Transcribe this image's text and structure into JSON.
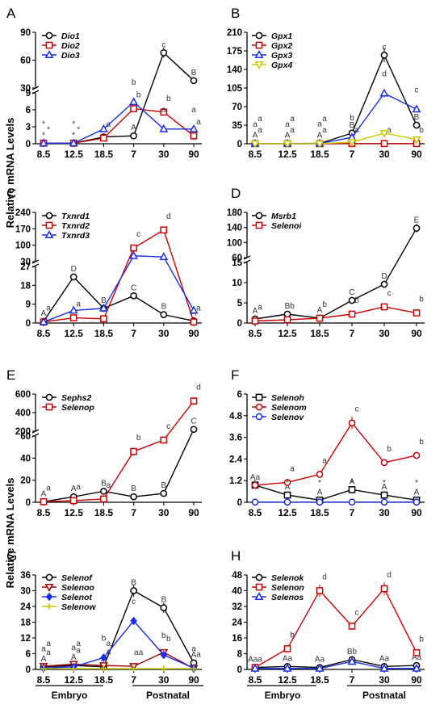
{
  "y_axis_label": "Relative mRNA Levels",
  "x_ticks": [
    "8.5",
    "12.5",
    "18.5",
    "7",
    "30",
    "90"
  ],
  "groups": {
    "embryo": "Embryo",
    "postnatal": "Postnatal"
  },
  "colors": {
    "black": "#000000",
    "red": "#cc0000",
    "blue": "#1a2ee6",
    "yellow": "#c8c800",
    "darkred": "#a00000"
  },
  "chart_data": [
    {
      "panel": "A",
      "type": "line",
      "x": [
        "8.5",
        "12.5",
        "18.5",
        "7",
        "30",
        "90"
      ],
      "broken_axis": true,
      "y_ticks_lower": [
        0,
        3,
        6,
        9
      ],
      "y_ticks_upper": [
        30,
        60,
        90
      ],
      "series": [
        {
          "name": "Dio1",
          "color": "black",
          "marker": "circle",
          "values": [
            0.1,
            0.1,
            1.2,
            1.4,
            68,
            38
          ],
          "labels": [
            "*",
            "*",
            "a",
            "A",
            "c",
            "B"
          ]
        },
        {
          "name": "Dio2",
          "color": "red",
          "marker": "square",
          "values": [
            0.1,
            0.1,
            1.0,
            6.2,
            5.6,
            1.4
          ],
          "labels": [
            "*",
            "*",
            "a",
            "b",
            "b",
            "a"
          ]
        },
        {
          "name": "Dio3",
          "color": "blue",
          "marker": "triangle",
          "values": [
            0.1,
            0.1,
            2.6,
            7.4,
            2.6,
            2.6
          ],
          "labels": [
            "*",
            "*",
            "",
            "b",
            "a",
            "a"
          ]
        }
      ]
    },
    {
      "panel": "B",
      "type": "line",
      "x": [
        "8.5",
        "12.5",
        "18.5",
        "7",
        "30",
        "90"
      ],
      "y_ticks": [
        0,
        35,
        70,
        105,
        140,
        175,
        210
      ],
      "series": [
        {
          "name": "Gpx1",
          "color": "black",
          "marker": "circle",
          "values": [
            0.5,
            0.5,
            0.6,
            20,
            167,
            35
          ],
          "labels": [
            "A",
            "A",
            "A",
            "B",
            "c",
            "B"
          ]
        },
        {
          "name": "Gpx2",
          "color": "red",
          "marker": "square",
          "values": [
            0.2,
            0.2,
            0.2,
            0.3,
            0.3,
            0.3
          ],
          "labels": [
            "a",
            "a",
            "a",
            "a",
            "a",
            "b"
          ]
        },
        {
          "name": "Gpx3",
          "color": "blue",
          "marker": "triangle",
          "values": [
            0.3,
            0.3,
            0.5,
            12,
            95,
            65
          ],
          "labels": [
            "a",
            "a",
            "a",
            "b",
            "d",
            "c"
          ]
        },
        {
          "name": "Gpx4",
          "color": "yellow",
          "marker": "tri-down",
          "values": [
            0.2,
            0.2,
            0.3,
            3,
            20,
            8
          ],
          "labels": [
            "a",
            "a",
            "a",
            "",
            "",
            ""
          ]
        }
      ]
    },
    {
      "panel": "C",
      "type": "line",
      "x": [
        "8.5",
        "12.5",
        "18.5",
        "7",
        "30",
        "90"
      ],
      "broken_axis": true,
      "y_ticks_lower": [
        0,
        9,
        18,
        27
      ],
      "y_ticks_upper": [
        30,
        100,
        170,
        240
      ],
      "series": [
        {
          "name": "Txnrd1",
          "color": "black",
          "marker": "circle",
          "values": [
            0.8,
            22,
            7,
            13,
            4,
            1
          ],
          "labels": [
            "A",
            "D",
            "B",
            "C",
            "B",
            "A"
          ]
        },
        {
          "name": "Txnrd2",
          "color": "red",
          "marker": "square",
          "values": [
            0.5,
            2.5,
            2,
            88,
            165,
            0.5
          ],
          "labels": [
            "a",
            "a",
            "",
            "c",
            "d",
            "a"
          ]
        },
        {
          "name": "Txnrd3",
          "color": "blue",
          "marker": "triangle",
          "values": [
            0.5,
            6,
            7,
            55,
            50,
            6
          ],
          "labels": [
            "",
            "",
            "",
            "",
            "",
            ""
          ]
        }
      ]
    },
    {
      "panel": "D",
      "type": "line",
      "x": [
        "8.5",
        "12.5",
        "18.5",
        "7",
        "30",
        "90"
      ],
      "broken_axis": true,
      "y_ticks_lower": [
        0,
        5,
        10,
        15
      ],
      "y_ticks_upper": [
        60,
        100,
        140,
        180
      ],
      "series": [
        {
          "name": "Msrb1",
          "color": "black",
          "marker": "circle",
          "values": [
            1,
            2.2,
            1.2,
            5.6,
            9.6,
            138
          ],
          "labels": [
            "A",
            "B",
            "A",
            "C",
            "D",
            "E"
          ]
        },
        {
          "name": "Selenoi",
          "color": "red",
          "marker": "square",
          "values": [
            0.5,
            0.8,
            1.2,
            2.2,
            4,
            2.5
          ],
          "labels": [
            "a",
            "b",
            "b",
            "b",
            "c",
            "b"
          ]
        }
      ]
    },
    {
      "panel": "E",
      "type": "line",
      "x": [
        "8.5",
        "12.5",
        "18.5",
        "7",
        "30",
        "90"
      ],
      "broken_axis": true,
      "y_ticks_lower": [
        0,
        20,
        40,
        60
      ],
      "y_ticks_upper": [
        200,
        400,
        600
      ],
      "series": [
        {
          "name": "Sephs2",
          "color": "black",
          "marker": "circle",
          "values": [
            0.5,
            5,
            10,
            5,
            8,
            220
          ],
          "labels": [
            "A",
            "A",
            "B",
            "B",
            "B",
            "C"
          ]
        },
        {
          "name": "Selenop",
          "color": "red",
          "marker": "square",
          "values": [
            0.5,
            1.5,
            3,
            46,
            105,
            525
          ],
          "labels": [
            "a",
            "a",
            "a",
            "b",
            "c",
            "d"
          ]
        }
      ]
    },
    {
      "panel": "F",
      "type": "line",
      "x": [
        "8.5",
        "12.5",
        "18.5",
        "7",
        "30",
        "90"
      ],
      "y_ticks": [
        0.0,
        1.2,
        2.4,
        3.6,
        4.8,
        6.0
      ],
      "series": [
        {
          "name": "Selenoh",
          "color": "black",
          "marker": "square",
          "values": [
            0.95,
            0.4,
            0.12,
            0.7,
            0.4,
            0.12
          ],
          "labels": [
            "Aa",
            "A",
            "A",
            "A",
            "A",
            "A"
          ]
        },
        {
          "name": "Selenom",
          "color": "red",
          "marker": "circle",
          "values": [
            0.95,
            1.1,
            1.55,
            4.4,
            2.2,
            2.6
          ],
          "labels": [
            "",
            "a",
            "a",
            "c",
            "b",
            "b"
          ]
        },
        {
          "name": "Selenov",
          "color": "blue",
          "marker": "circle",
          "values": [
            0.01,
            0.01,
            0.01,
            0.01,
            0.01,
            0.01
          ],
          "labels": [
            "*",
            "*",
            "*",
            "*",
            "*",
            "*"
          ]
        }
      ]
    },
    {
      "panel": "G",
      "type": "line",
      "x": [
        "8.5",
        "12.5",
        "18.5",
        "7",
        "30",
        "90"
      ],
      "y_ticks": [
        0,
        6,
        12,
        18,
        24,
        30,
        36
      ],
      "series": [
        {
          "name": "Selenof",
          "color": "black",
          "marker": "circle",
          "values": [
            1,
            1.5,
            1,
            30,
            23.5,
            2.5
          ],
          "labels": [
            "A",
            "A",
            "A",
            "B",
            "B",
            "A"
          ]
        },
        {
          "name": "Selenoo",
          "color": "darkred",
          "marker": "tri-down",
          "values": [
            1.2,
            2,
            1.5,
            1.2,
            6.5,
            0.4
          ],
          "labels": [
            "a",
            "a",
            "a",
            "aa",
            "b",
            "a"
          ]
        },
        {
          "name": "Selenot",
          "color": "blue",
          "marker": "diamond",
          "values": [
            0.5,
            1,
            4.5,
            18.5,
            5.5,
            0.5
          ],
          "labels": [
            "a",
            "a",
            "b",
            "c",
            "b",
            "a"
          ]
        },
        {
          "name": "Selenow",
          "color": "yellow",
          "marker": "plus",
          "values": [
            0.3,
            0.3,
            0.3,
            0.3,
            0.3,
            0.3
          ],
          "labels": [
            "a",
            "a",
            "a",
            "",
            "",
            ""
          ]
        }
      ]
    },
    {
      "panel": "H",
      "type": "line",
      "x": [
        "8.5",
        "12.5",
        "18.5",
        "7",
        "30",
        "90"
      ],
      "y_ticks": [
        0,
        8,
        16,
        24,
        32,
        40,
        48
      ],
      "series": [
        {
          "name": "Selenok",
          "color": "black",
          "marker": "circle",
          "values": [
            1,
            1.5,
            1,
            5,
            1.5,
            2
          ],
          "labels": [
            "Aaa",
            "Aa",
            "Aa",
            "Bb",
            "Aa",
            "Aa"
          ]
        },
        {
          "name": "Selenon",
          "color": "red",
          "marker": "square",
          "values": [
            1,
            10.5,
            40,
            22,
            41,
            8.5
          ],
          "labels": [
            "",
            "b",
            "d",
            "c",
            "d",
            "b"
          ]
        },
        {
          "name": "Selenos",
          "color": "blue",
          "marker": "triangle",
          "values": [
            0.5,
            0.5,
            0.5,
            4,
            0.5,
            0.5
          ],
          "labels": [
            "",
            "",
            "",
            "",
            "",
            ""
          ]
        }
      ]
    }
  ]
}
